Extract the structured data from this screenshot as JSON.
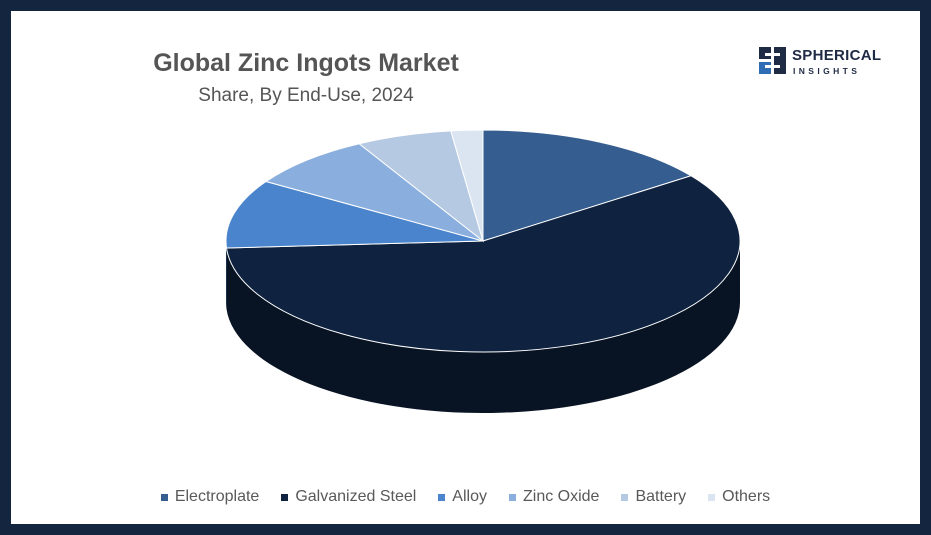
{
  "chart_data": {
    "type": "pie",
    "title": "Global Zinc Ingots Market",
    "subtitle": "Share, By End-Use, 2024",
    "style": "3d",
    "legend_position": "bottom",
    "series": [
      {
        "name": "Electroplate",
        "value": 15,
        "color": "#355d8f"
      },
      {
        "name": "Galvanized Steel",
        "value": 59,
        "color": "#0f2340"
      },
      {
        "name": "Alloy",
        "value": 10,
        "color": "#4a84cc"
      },
      {
        "name": "Zinc Oxide",
        "value": 8,
        "color": "#8aafdf"
      },
      {
        "name": "Battery",
        "value": 6,
        "color": "#b6c9e2"
      },
      {
        "name": "Others",
        "value": 2,
        "color": "#dbe5f1"
      }
    ]
  },
  "logo": {
    "top": "SPHERICAL",
    "bottom": "INSIGHTS",
    "brand_color": "#1f2a44",
    "accent_color": "#2f6db5"
  }
}
